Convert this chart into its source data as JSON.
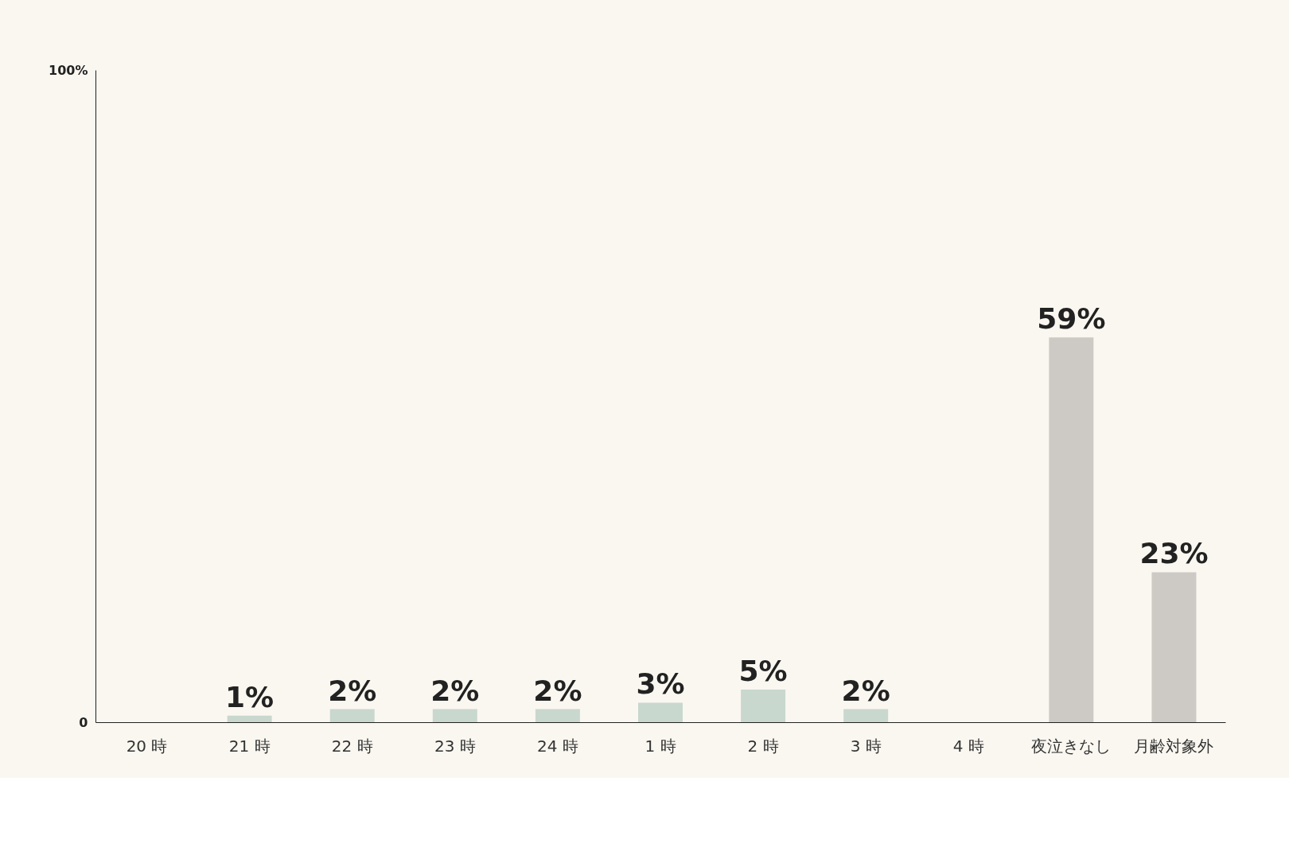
{
  "chart_data": {
    "type": "bar",
    "categories": [
      "20 時",
      "21 時",
      "22 時",
      "23 時",
      "24 時",
      "1 時",
      "2 時",
      "3 時",
      "4 時",
      "夜泣きなし",
      "月齢対象外"
    ],
    "values": [
      null,
      1,
      2,
      2,
      2,
      3,
      5,
      2,
      null,
      59,
      23
    ],
    "value_labels": [
      null,
      "1%",
      "2%",
      "2%",
      "2%",
      "3%",
      "5%",
      "2%",
      null,
      "59%",
      "23%"
    ],
    "colors": [
      "#c9d8cf",
      "#c9d8cf",
      "#c9d8cf",
      "#c9d8cf",
      "#c9d8cf",
      "#c9d8cf",
      "#c9d8cf",
      "#c9d8cf",
      "#c9d8cf",
      "#cdcac5",
      "#cdcac5"
    ],
    "ylim": [
      0,
      100
    ],
    "yticks": [
      {
        "value": 0,
        "label": "0"
      },
      {
        "value": 100,
        "label": "100%"
      }
    ],
    "grid": false,
    "legend": false
  }
}
